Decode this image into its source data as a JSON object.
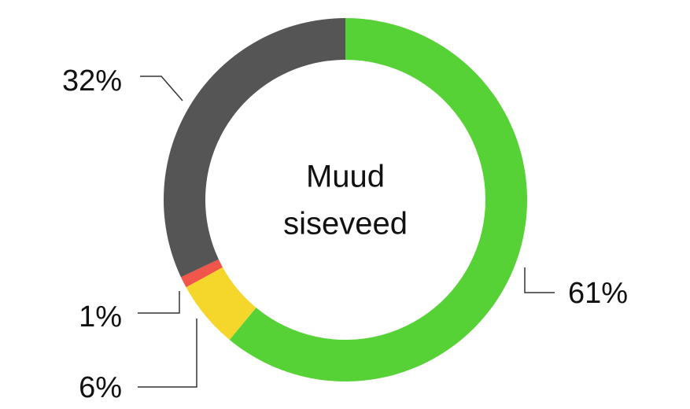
{
  "chart_data": {
    "type": "donut",
    "center_label": [
      "Muud",
      "siseveed"
    ],
    "categories": [
      null,
      null,
      null,
      null
    ],
    "values": [
      61,
      6,
      1,
      32
    ],
    "value_labels": [
      "61%",
      "6%",
      "1%",
      "32%"
    ],
    "colors": [
      "#56d136",
      "#f5d62a",
      "#f0564a",
      "#555555"
    ]
  }
}
